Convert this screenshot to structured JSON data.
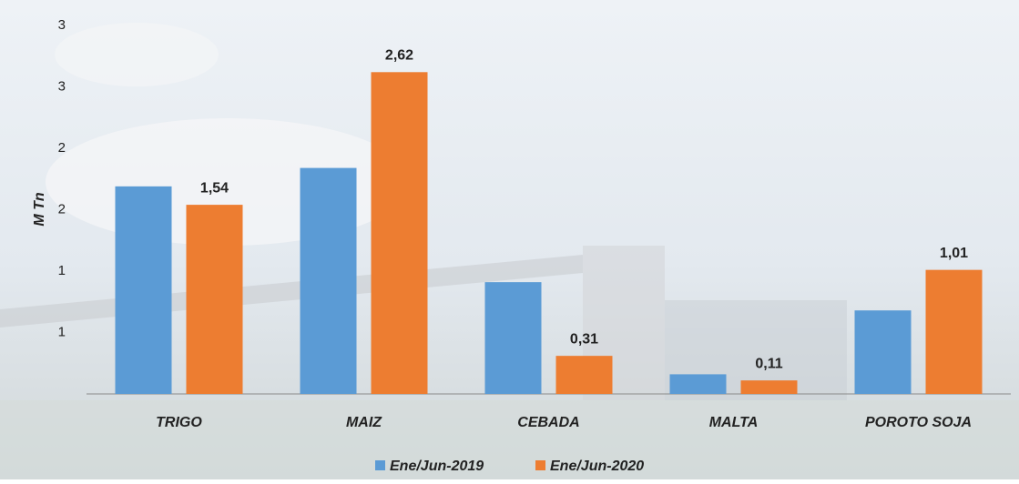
{
  "chart_data": {
    "type": "bar",
    "y_label": "M Tn",
    "categories": [
      "TRIGO",
      "MAIZ",
      "CEBADA",
      "MALTA",
      "POROTO SOJA"
    ],
    "series": [
      {
        "name": "Ene/Jun-2019",
        "color": "#5b9bd5",
        "values": [
          1.69,
          1.84,
          0.91,
          0.16,
          0.68
        ]
      },
      {
        "name": "Ene/Jun-2020",
        "color": "#ed7d31",
        "values": [
          1.54,
          2.62,
          0.31,
          0.11,
          1.01
        ],
        "value_labels": [
          "1,54",
          "2,62",
          "0,31",
          "0,11",
          "1,01"
        ]
      }
    ],
    "ylim": [
      0,
      3
    ],
    "yticks": [
      {
        "value": 0.5,
        "label": "1"
      },
      {
        "value": 1,
        "label": "1"
      },
      {
        "value": 1.5,
        "label": "2"
      },
      {
        "value": 2,
        "label": "2"
      },
      {
        "value": 2.5,
        "label": "3"
      },
      {
        "value": 3,
        "label": "3"
      }
    ],
    "grid": false
  }
}
